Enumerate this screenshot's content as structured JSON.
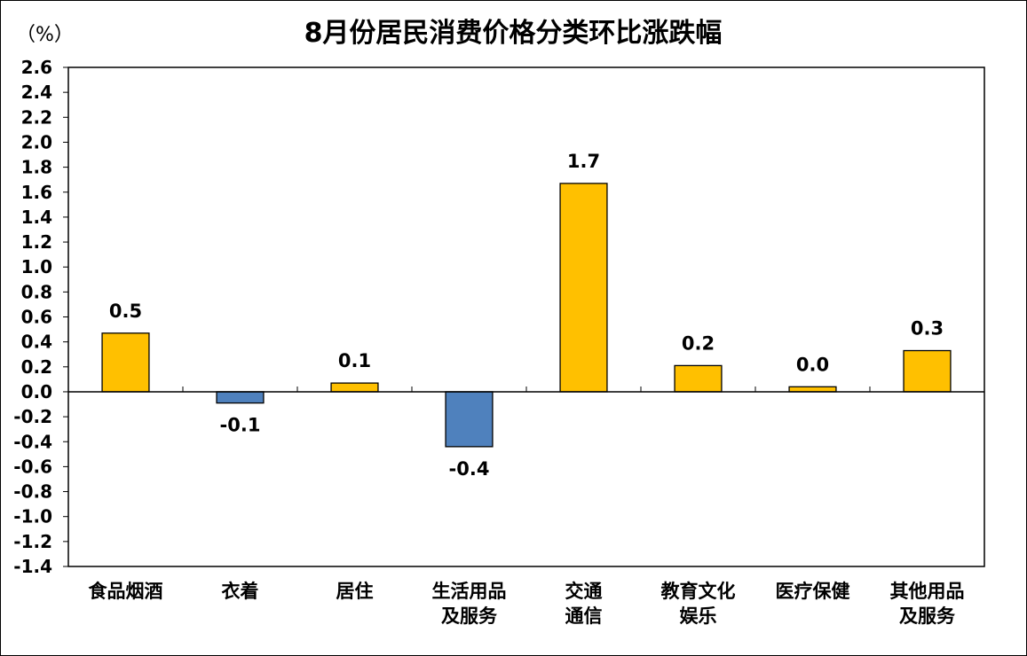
{
  "chart_data": {
    "type": "bar",
    "title": "8月份居民消费价格分类环比涨跌幅",
    "unit_label": "（%）",
    "categories": [
      [
        "食品烟酒"
      ],
      [
        "衣着"
      ],
      [
        "居住"
      ],
      [
        "生活用品",
        "及服务"
      ],
      [
        "交通",
        "通信"
      ],
      [
        "教育文化",
        "娱乐"
      ],
      [
        "医疗保健"
      ],
      [
        "其他用品",
        "及服务"
      ]
    ],
    "values": [
      0.47,
      -0.09,
      0.07,
      -0.44,
      1.67,
      0.21,
      0.04,
      0.33
    ],
    "data_labels": [
      "0.5",
      "-0.1",
      "0.1",
      "-0.4",
      "1.7",
      "0.2",
      "0.0",
      "0.3"
    ],
    "ylim": [
      -1.4,
      2.6
    ],
    "yticks": [
      "2.6",
      "2.4",
      "2.2",
      "2.0",
      "1.8",
      "1.6",
      "1.4",
      "1.2",
      "1.0",
      "0.8",
      "0.6",
      "0.4",
      "0.2",
      "0.0",
      "-0.2",
      "-0.4",
      "-0.6",
      "-0.8",
      "-1.0",
      "-1.2",
      "-1.4"
    ],
    "ytick_step": 0.2,
    "grid": false,
    "legend": "none",
    "colors": {
      "positive": "#FFC000",
      "negative": "#4F81BD",
      "outline": "#000000"
    }
  }
}
